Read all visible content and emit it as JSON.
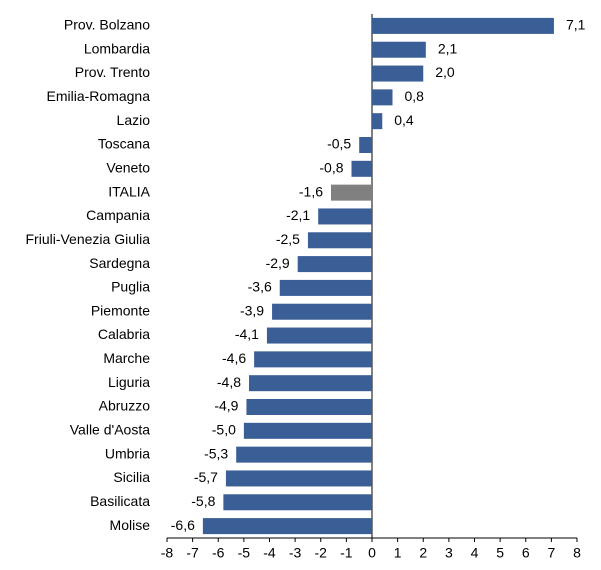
{
  "chart_data": {
    "type": "hbar",
    "categories": [
      "Prov. Bolzano",
      "Lombardia",
      "Prov. Trento",
      "Emilia-Romagna",
      "Lazio",
      "Toscana",
      "Veneto",
      "ITALIA",
      "Campania",
      "Friuli-Venezia Giulia",
      "Sardegna",
      "Puglia",
      "Piemonte",
      "Calabria",
      "Marche",
      "Liguria",
      "Abruzzo",
      "Valle d'Aosta",
      "Umbria",
      "Sicilia",
      "Basilicata",
      "Molise"
    ],
    "values": [
      7.1,
      2.1,
      2.0,
      0.8,
      0.4,
      -0.5,
      -0.8,
      -1.6,
      -2.1,
      -2.5,
      -2.9,
      -3.6,
      -3.9,
      -4.1,
      -4.6,
      -4.8,
      -4.9,
      -5.0,
      -5.3,
      -5.7,
      -5.8,
      -6.6
    ],
    "value_labels": [
      "7,1",
      "2,1",
      "2,0",
      "0,8",
      "0,4",
      "-0,5",
      "-0,8",
      "-1,6",
      "-2,1",
      "-2,5",
      "-2,9",
      "-3,6",
      "-3,9",
      "-4,1",
      "-4,6",
      "-4,8",
      "-4,9",
      "-5,0",
      "-5,3",
      "-5,7",
      "-5,8",
      "-6,6"
    ],
    "colors": [
      "#3a5e96",
      "#3a5e96",
      "#3a5e96",
      "#3a5e96",
      "#3a5e96",
      "#3a5e96",
      "#3a5e96",
      "#808080",
      "#3a5e96",
      "#3a5e96",
      "#3a5e96",
      "#3a5e96",
      "#3a5e96",
      "#3a5e96",
      "#3a5e96",
      "#3a5e96",
      "#3a5e96",
      "#3a5e96",
      "#3a5e96",
      "#3a5e96",
      "#3a5e96",
      "#3a5e96"
    ],
    "xlim": [
      -8,
      8
    ],
    "xticks": [
      -8,
      -7,
      -6,
      -5,
      -4,
      -3,
      -2,
      -1,
      0,
      1,
      2,
      3,
      4,
      5,
      6,
      7,
      8
    ]
  }
}
